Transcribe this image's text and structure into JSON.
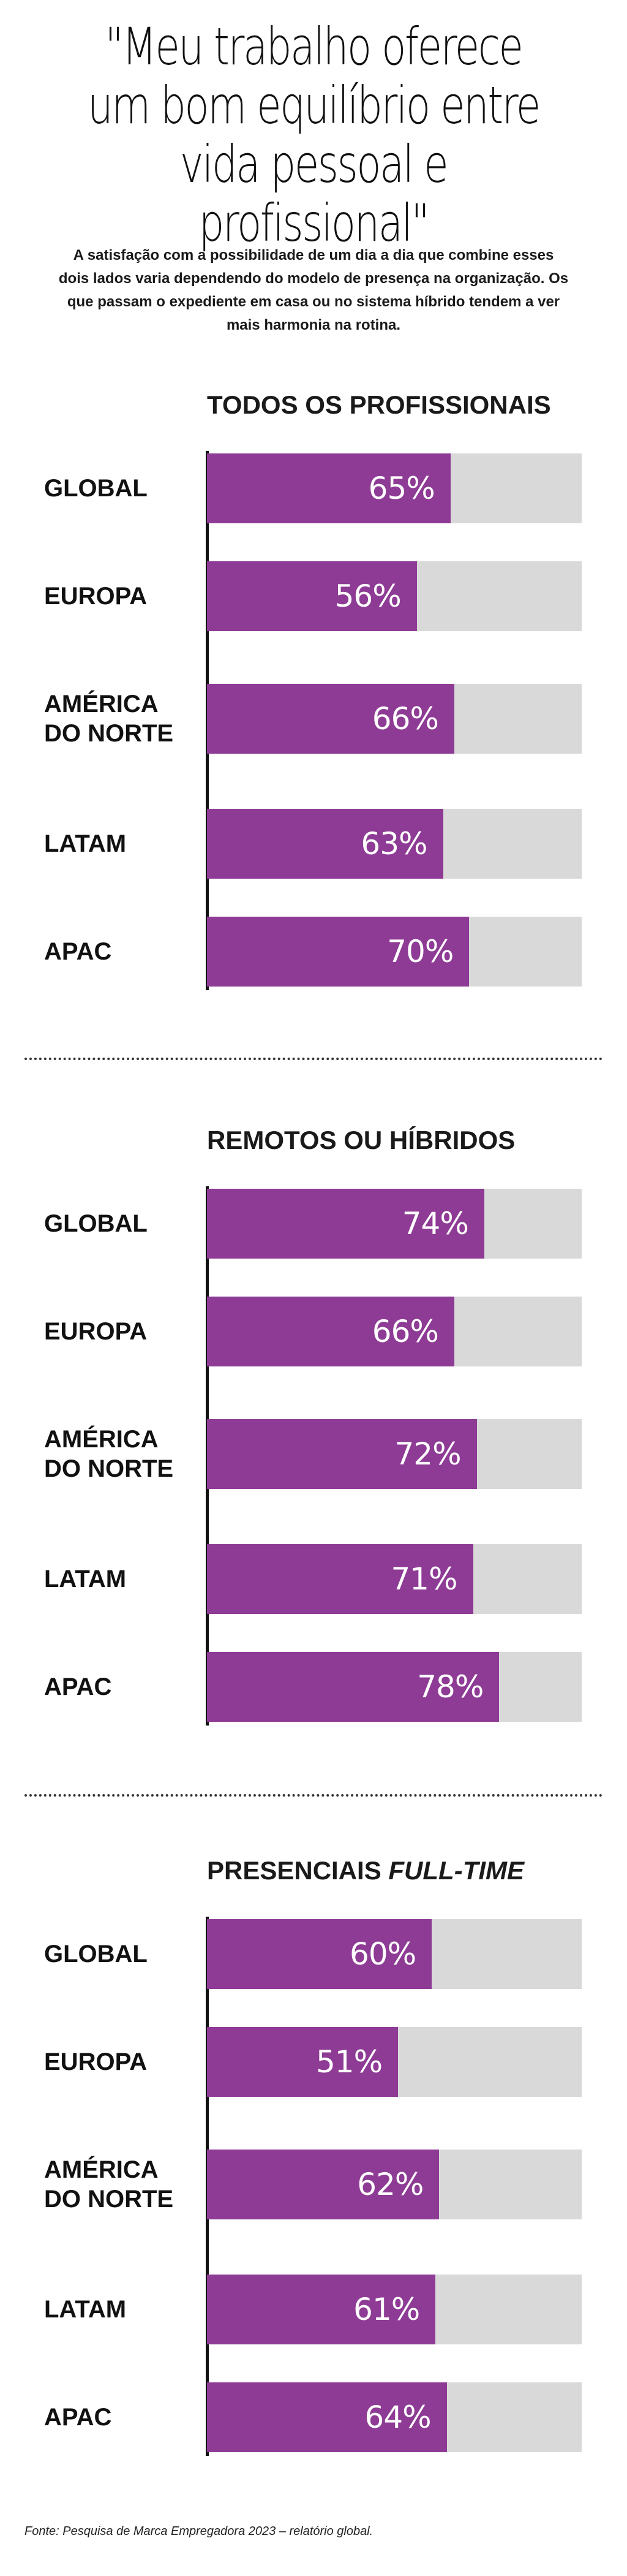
{
  "headline": "\"Meu trabalho oferece um bom equilíbrio entre vida pessoal e profissional\"",
  "intro": "A satisfação com a possibilidade de um dia a dia que combine esses dois lados varia dependendo do modelo de presença na organização. Os que passam o expediente em casa ou no sistema híbrido tendem a ver mais harmonia na rotina.",
  "source": "Fonte: Pesquisa de Marca Empregadora 2023 – relatório global.",
  "colors": {
    "fill": "#8e3b95",
    "track": "#d9d9da",
    "axis": "#111111"
  },
  "chart_data": [
    {
      "type": "bar",
      "orientation": "horizontal",
      "title": "TODOS OS PROFISSIONAIS",
      "title_emphasis": "",
      "categories": [
        "GLOBAL",
        "EUROPA",
        "AMÉRICA DO NORTE",
        "LATAM",
        "APAC"
      ],
      "values": [
        65,
        56,
        66,
        63,
        70
      ],
      "labels": [
        "65%",
        "56%",
        "66%",
        "63%",
        "70%"
      ],
      "xlim": [
        0,
        100
      ]
    },
    {
      "type": "bar",
      "orientation": "horizontal",
      "title": "REMOTOS OU HÍBRIDOS",
      "title_emphasis": "",
      "categories": [
        "GLOBAL",
        "EUROPA",
        "AMÉRICA DO NORTE",
        "LATAM",
        "APAC"
      ],
      "values": [
        74,
        66,
        72,
        71,
        78
      ],
      "labels": [
        "74%",
        "66%",
        "72%",
        "71%",
        "78%"
      ],
      "xlim": [
        0,
        100
      ]
    },
    {
      "type": "bar",
      "orientation": "horizontal",
      "title": "PRESENCIAIS",
      "title_emphasis": "FULL-TIME",
      "categories": [
        "GLOBAL",
        "EUROPA",
        "AMÉRICA DO NORTE",
        "LATAM",
        "APAC"
      ],
      "values": [
        60,
        51,
        62,
        61,
        64
      ],
      "labels": [
        "60%",
        "51%",
        "62%",
        "61%",
        "64%"
      ],
      "xlim": [
        0,
        100
      ]
    }
  ]
}
